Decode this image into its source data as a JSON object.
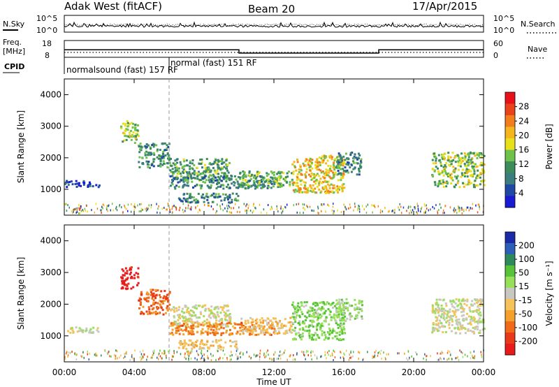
{
  "header": {
    "radar": "Adak West (fitACF)",
    "beam": "Beam 20",
    "date": "17/Apr/2015"
  },
  "noise_panel": {
    "left_label": "N.Sky",
    "right_label": "N.Search",
    "left_ticks": [
      "10^5",
      "10^0"
    ],
    "right_ticks": [
      "10^5",
      "10^0"
    ]
  },
  "freq_panel": {
    "left_label_1": "Freq.",
    "left_label_2": "[MHz]",
    "left_ticks": [
      "18",
      "8"
    ],
    "right_label": "Nave",
    "right_ticks": [
      "60",
      "0"
    ]
  },
  "cpid_panel": {
    "label": "CPID",
    "modes": [
      {
        "text": "normalsound (fast) 157 RF",
        "start_hour": 0
      },
      {
        "text": "normal (fast) 151 RF",
        "start_hour": 6
      }
    ]
  },
  "axes": {
    "ylabel": "Slant Range [km]",
    "xlabel": "Time UT",
    "yticks": [
      "4000",
      "3000",
      "2000",
      "1000"
    ],
    "xticks": [
      "00:00",
      "04:00",
      "08:00",
      "12:00",
      "16:00",
      "20:00",
      "00:00"
    ]
  },
  "power_colorbar": {
    "label": "Power [dB]",
    "ticks": [
      "28",
      "24",
      "20",
      "16",
      "12",
      "8",
      "4"
    ],
    "colors": [
      "#e8111a",
      "#e8431a",
      "#f27d1d",
      "#f5b51d",
      "#e8e01b",
      "#6ec24c",
      "#3c8c5c",
      "#3c7d7d",
      "#2049a5",
      "#1a1ad4"
    ]
  },
  "velocity_colorbar": {
    "label": "Velocity [m s⁻¹]",
    "ticks": [
      "200",
      "100",
      "50",
      "15",
      "-15",
      "-50",
      "-100",
      "-200"
    ],
    "colors": [
      "#1c2aa8",
      "#2d5fb8",
      "#2e8a58",
      "#58c23a",
      "#96e05a",
      "#c8c8c0",
      "#f5c35a",
      "#f5a02a",
      "#f06a18",
      "#e83a18",
      "#e81a1a"
    ]
  },
  "chart_data": {
    "type": "heatmap",
    "x_range_hours": [
      0,
      24
    ],
    "y_range_km": [
      180,
      4500
    ],
    "vertical_marker_hour": 6,
    "noise_range": [
      "10^0",
      "10^5"
    ],
    "freq_ylim": [
      8,
      18
    ],
    "freq_steps": [
      {
        "start_hour": 0,
        "end_hour": 10,
        "freq_mhz": 12.5
      },
      {
        "start_hour": 10,
        "end_hour": 18,
        "freq_mhz": 10.5
      },
      {
        "start_hour": 18,
        "end_hour": 24,
        "freq_mhz": 12.5
      }
    ],
    "power_scale_db": [
      0,
      30
    ],
    "velocity_scale_ms": [
      -200,
      200
    ],
    "echo_regions": [
      {
        "t0": 3.2,
        "t1": 4.2,
        "r0": 2500,
        "r1": 3200,
        "power_db": 14,
        "velocity_ms": -190
      },
      {
        "t0": 4.2,
        "t1": 6.0,
        "r0": 1700,
        "r1": 2500,
        "power_db": 10,
        "velocity_ms": -120
      },
      {
        "t0": 6.0,
        "t1": 9.5,
        "r0": 1300,
        "r1": 2000,
        "power_db": 11,
        "velocity_ms": 0
      },
      {
        "t0": 6.5,
        "t1": 10.0,
        "r0": 600,
        "r1": 900,
        "power_db": 9,
        "velocity_ms": -40
      },
      {
        "t0": 6.0,
        "t1": 12.0,
        "r0": 1050,
        "r1": 1450,
        "power_db": 9,
        "velocity_ms": -90
      },
      {
        "t0": 10.0,
        "t1": 13.0,
        "r0": 1100,
        "r1": 1600,
        "power_db": 12,
        "velocity_ms": -40
      },
      {
        "t0": 13.0,
        "t1": 16.0,
        "r0": 900,
        "r1": 2100,
        "power_db": 18,
        "velocity_ms": 50
      },
      {
        "t0": 15.5,
        "t1": 17.0,
        "r0": 1500,
        "r1": 2200,
        "power_db": 8,
        "velocity_ms": 30
      },
      {
        "t0": 21.0,
        "t1": 24.0,
        "r0": 1100,
        "r1": 2200,
        "power_db": 14,
        "velocity_ms": 0
      },
      {
        "t0": 0.0,
        "t1": 2.0,
        "r0": 1100,
        "r1": 1300,
        "power_db": 5,
        "velocity_ms": 0
      }
    ]
  }
}
